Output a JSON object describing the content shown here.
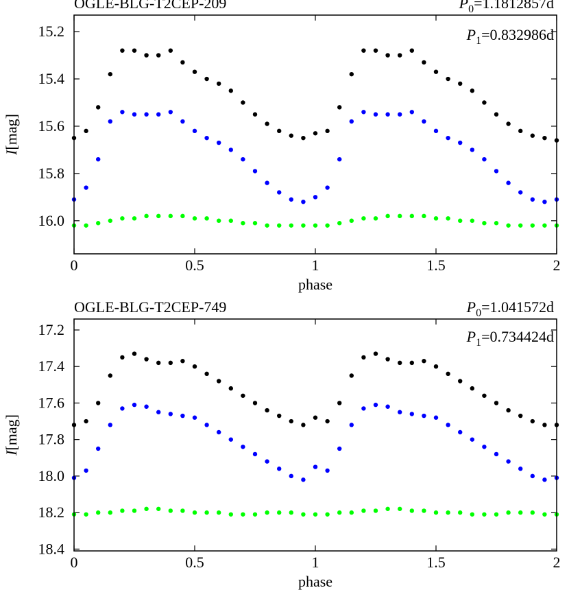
{
  "chart_data": [
    {
      "type": "scatter",
      "title": "OGLE-BLG-T2CEP-209",
      "annotations": [
        {
          "symbol": "P",
          "subscript": "0",
          "text": "=1.1812857d"
        },
        {
          "symbol": "P",
          "subscript": "1",
          "text": "=0.832986d"
        }
      ],
      "xlabel": "phase",
      "ylabel": {
        "symbol": "I",
        "unit": "[mag]"
      },
      "xlim": [
        0,
        2
      ],
      "xticks": [
        0,
        0.5,
        1,
        1.5,
        2
      ],
      "ylim": [
        15.13,
        16.14
      ],
      "y_inverted": true,
      "yticks": [
        15.2,
        15.4,
        15.6,
        15.8,
        {
          "value": 16,
          "label": "16.0"
        }
      ],
      "x": [
        0,
        0.05,
        0.1,
        0.15,
        0.2,
        0.25,
        0.3,
        0.35,
        0.4,
        0.45,
        0.5,
        0.55,
        0.6,
        0.65,
        0.7,
        0.75,
        0.8,
        0.85,
        0.9,
        0.95,
        1,
        1.05,
        1.1,
        1.15,
        1.2,
        1.25,
        1.3,
        1.35,
        1.4,
        1.45,
        1.5,
        1.55,
        1.6,
        1.65,
        1.7,
        1.75,
        1.8,
        1.85,
        1.9,
        1.95,
        2
      ],
      "series": [
        {
          "color": "#000000",
          "values": [
            15.65,
            15.62,
            15.52,
            15.38,
            15.28,
            15.28,
            15.3,
            15.3,
            15.28,
            15.33,
            15.37,
            15.4,
            15.42,
            15.45,
            15.5,
            15.55,
            15.59,
            15.62,
            15.64,
            15.65,
            15.63,
            15.62,
            15.52,
            15.38,
            15.28,
            15.28,
            15.3,
            15.3,
            15.28,
            15.33,
            15.37,
            15.4,
            15.42,
            15.45,
            15.5,
            15.55,
            15.59,
            15.62,
            15.64,
            15.65,
            15.66
          ]
        },
        {
          "color": "#0000ff",
          "values": [
            15.91,
            15.86,
            15.74,
            15.58,
            15.54,
            15.55,
            15.55,
            15.55,
            15.54,
            15.58,
            15.62,
            15.65,
            15.67,
            15.7,
            15.74,
            15.79,
            15.84,
            15.88,
            15.91,
            15.92,
            15.9,
            15.86,
            15.74,
            15.58,
            15.54,
            15.55,
            15.55,
            15.55,
            15.54,
            15.58,
            15.62,
            15.65,
            15.67,
            15.7,
            15.74,
            15.79,
            15.84,
            15.88,
            15.91,
            15.92,
            15.91
          ]
        },
        {
          "color": "#00ff00",
          "values": [
            16.02,
            16.02,
            16.01,
            16.0,
            15.99,
            15.99,
            15.98,
            15.98,
            15.98,
            15.98,
            15.99,
            15.99,
            16.0,
            16.0,
            16.01,
            16.01,
            16.02,
            16.02,
            16.02,
            16.02,
            16.02,
            16.02,
            16.01,
            16.0,
            15.99,
            15.99,
            15.98,
            15.98,
            15.98,
            15.98,
            15.99,
            15.99,
            16.0,
            16.0,
            16.01,
            16.01,
            16.02,
            16.02,
            16.02,
            16.02,
            16.02
          ]
        }
      ]
    },
    {
      "type": "scatter",
      "title": "OGLE-BLG-T2CEP-749",
      "annotations": [
        {
          "symbol": "P",
          "subscript": "0",
          "text": "=1.041572d"
        },
        {
          "symbol": "P",
          "subscript": "1",
          "text": "=0.734424d"
        }
      ],
      "xlabel": "phase",
      "ylabel": {
        "symbol": "I",
        "unit": "[mag]"
      },
      "xlim": [
        0,
        2
      ],
      "xticks": [
        0,
        0.5,
        1,
        1.5,
        2
      ],
      "ylim": [
        17.14,
        18.41
      ],
      "y_inverted": true,
      "yticks": [
        17.2,
        17.4,
        17.6,
        17.8,
        {
          "value": 18,
          "label": "18.0"
        },
        18.2,
        18.4
      ],
      "x": [
        0,
        0.05,
        0.1,
        0.15,
        0.2,
        0.25,
        0.3,
        0.35,
        0.4,
        0.45,
        0.5,
        0.55,
        0.6,
        0.65,
        0.7,
        0.75,
        0.8,
        0.85,
        0.9,
        0.95,
        1,
        1.05,
        1.1,
        1.15,
        1.2,
        1.25,
        1.3,
        1.35,
        1.4,
        1.45,
        1.5,
        1.55,
        1.6,
        1.65,
        1.7,
        1.75,
        1.8,
        1.85,
        1.9,
        1.95,
        2
      ],
      "series": [
        {
          "color": "#000000",
          "values": [
            17.72,
            17.7,
            17.6,
            17.45,
            17.35,
            17.33,
            17.36,
            17.38,
            17.38,
            17.37,
            17.4,
            17.44,
            17.48,
            17.52,
            17.56,
            17.6,
            17.64,
            17.67,
            17.7,
            17.72,
            17.68,
            17.7,
            17.6,
            17.45,
            17.35,
            17.33,
            17.36,
            17.38,
            17.38,
            17.37,
            17.4,
            17.44,
            17.48,
            17.52,
            17.56,
            17.6,
            17.64,
            17.67,
            17.7,
            17.72,
            17.72
          ]
        },
        {
          "color": "#0000ff",
          "values": [
            18.01,
            17.97,
            17.85,
            17.72,
            17.63,
            17.61,
            17.62,
            17.65,
            17.66,
            17.67,
            17.68,
            17.72,
            17.76,
            17.8,
            17.84,
            17.88,
            17.92,
            17.96,
            18.0,
            18.02,
            17.95,
            17.97,
            17.85,
            17.72,
            17.63,
            17.61,
            17.62,
            17.65,
            17.66,
            17.67,
            17.68,
            17.72,
            17.76,
            17.8,
            17.84,
            17.88,
            17.92,
            17.96,
            18.0,
            18.02,
            18.01
          ]
        },
        {
          "color": "#00ff00",
          "values": [
            18.21,
            18.21,
            18.2,
            18.2,
            18.19,
            18.19,
            18.18,
            18.18,
            18.19,
            18.19,
            18.2,
            18.2,
            18.2,
            18.21,
            18.21,
            18.21,
            18.2,
            18.2,
            18.2,
            18.21,
            18.21,
            18.21,
            18.2,
            18.2,
            18.19,
            18.19,
            18.18,
            18.18,
            18.19,
            18.19,
            18.2,
            18.2,
            18.2,
            18.21,
            18.21,
            18.21,
            18.2,
            18.2,
            18.2,
            18.21,
            18.21
          ]
        }
      ]
    }
  ]
}
